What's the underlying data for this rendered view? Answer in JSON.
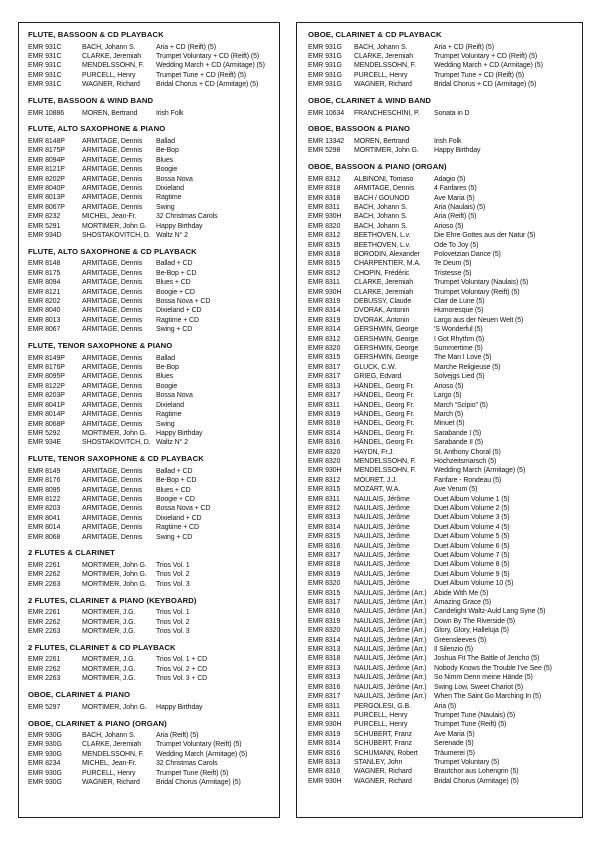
{
  "page": {
    "kind": "sheet-music-catalog-page"
  },
  "columns": [
    {
      "name": "left",
      "sections": [
        {
          "title": "FLUTE, BASSOON & CD PLAYBACK",
          "rows": [
            [
              "EMR 931C",
              "BACH, Johann S.",
              "Aria + CD (Reift) (5)"
            ],
            [
              "EMR 931C",
              "CLARKE, Jeremiah",
              "Trumpet Voluntary + CD (Reift) (5)"
            ],
            [
              "EMR 931C",
              "MENDELSSOHN, F.",
              "Wedding March + CD (Armitage) (5)"
            ],
            [
              "EMR 931C",
              "PURCELL, Henry",
              "Trumpet Tune + CD (Reift) (5)"
            ],
            [
              "EMR 931C",
              "WAGNER, Richard",
              "Bridal Chorus + CD (Armitage) (5)"
            ]
          ]
        },
        {
          "title": "FLUTE, BASSOON & WIND BAND",
          "rows": [
            [
              "EMR 10886",
              "MOREN, Bertrand",
              "Irish Folk"
            ]
          ]
        },
        {
          "title": "FLUTE, ALTO SAXOPHONE & PIANO",
          "rows": [
            [
              "EMR 8148P",
              "ARMITAGE, Dennis",
              "Ballad"
            ],
            [
              "EMR 8175P",
              "ARMITAGE, Dennis",
              "Be-Bop"
            ],
            [
              "EMR 8094P",
              "ARMITAGE, Dennis",
              "Blues"
            ],
            [
              "EMR 8121P",
              "ARMITAGE, Dennis",
              "Boogie"
            ],
            [
              "EMR 8202P",
              "ARMITAGE, Dennis",
              "Bossa Nova"
            ],
            [
              "EMR 8040P",
              "ARMITAGE, Dennis",
              "Dixieland"
            ],
            [
              "EMR 8013P",
              "ARMITAGE, Dennis",
              "Ragtime"
            ],
            [
              "EMR 8067P",
              "ARMITAGE, Dennis",
              "Swing"
            ],
            [
              "EMR 8232",
              "MICHEL, Jean-Fr.",
              "32 Christmas Carols"
            ],
            [
              "EMR 5291",
              "MORTIMER, John G.",
              "Happy Birthday"
            ],
            [
              "EMR 934D",
              "SHOSTAKOVITCH, D.",
              "Waltz N° 2"
            ]
          ]
        },
        {
          "title": "FLUTE, ALTO SAXOPHONE & CD PLAYBACK",
          "rows": [
            [
              "EMR 8148",
              "ARMITAGE, Dennis",
              "Ballad + CD"
            ],
            [
              "EMR 8175",
              "ARMITAGE, Dennis",
              "Be-Bop + CD"
            ],
            [
              "EMR 8094",
              "ARMITAGE, Dennis",
              "Blues + CD"
            ],
            [
              "EMR 8121",
              "ARMITAGE, Dennis",
              "Boogie + CD"
            ],
            [
              "EMR 8202",
              "ARMITAGE, Dennis",
              "Bossa Nova + CD"
            ],
            [
              "EMR 8040",
              "ARMITAGE, Dennis",
              "Dixieland + CD"
            ],
            [
              "EMR 8013",
              "ARMITAGE, Dennis",
              "Ragtime + CD"
            ],
            [
              "EMR 8067",
              "ARMITAGE, Dennis",
              "Swing + CD"
            ]
          ]
        },
        {
          "title": "FLUTE, TENOR SAXOPHONE & PIANO",
          "rows": [
            [
              "EMR 8149P",
              "ARMITAGE, Dennis",
              "Ballad"
            ],
            [
              "EMR 8176P",
              "ARMITAGE, Dennis",
              "Be-Bop"
            ],
            [
              "EMR 8095P",
              "ARMITAGE, Dennis",
              "Blues"
            ],
            [
              "EMR 8122P",
              "ARMITAGE, Dennis",
              "Boogie"
            ],
            [
              "EMR 8203P",
              "ARMITAGE, Dennis",
              "Bossa Nova"
            ],
            [
              "EMR 8041P",
              "ARMITAGE, Dennis",
              "Dixieland"
            ],
            [
              "EMR 8014P",
              "ARMITAGE, Dennis",
              "Ragtime"
            ],
            [
              "EMR 8068P",
              "ARMITAGE, Dennis",
              "Swing"
            ],
            [
              "EMR 5292",
              "MORTIMER, John G.",
              "Happy Birthday"
            ],
            [
              "EMR 934E",
              "SHOSTAKOVITCH, D.",
              "Waltz N° 2"
            ]
          ]
        },
        {
          "title": "FLUTE, TENOR SAXOPHONE & CD PLAYBACK",
          "rows": [
            [
              "EMR 8149",
              "ARMITAGE, Dennis",
              "Ballad + CD"
            ],
            [
              "EMR 8176",
              "ARMITAGE, Dennis",
              "Be-Bop + CD"
            ],
            [
              "EMR 8095",
              "ARMITAGE, Dennis",
              "Blues + CD"
            ],
            [
              "EMR 8122",
              "ARMITAGE, Dennis",
              "Boogie + CD"
            ],
            [
              "EMR 8203",
              "ARMITAGE, Dennis",
              "Bossa Nova + CD"
            ],
            [
              "EMR 8041",
              "ARMITAGE, Dennis",
              "Dixieland + CD"
            ],
            [
              "EMR 8014",
              "ARMITAGE, Dennis",
              "Ragtime + CD"
            ],
            [
              "EMR 8068",
              "ARMITAGE, Dennis",
              "Swing + CD"
            ]
          ]
        },
        {
          "title": "2 FLUTES & CLARINET",
          "rows": [
            [
              "EMR 2261",
              "MORTIMER, John G.",
              "Trios Vol. 1"
            ],
            [
              "EMR 2262",
              "MORTIMER, John G.",
              "Trios Vol. 2"
            ],
            [
              "EMR 2263",
              "MORTIMER, John G.",
              "Trios Vol. 3"
            ]
          ]
        },
        {
          "title": "2 FLUTES, CLARINET & PIANO (KEYBOARD)",
          "rows": [
            [
              "EMR 2261",
              "MORTIMER, J.G.",
              "Trios Vol. 1"
            ],
            [
              "EMR 2262",
              "MORTIMER, J.G.",
              "Trios Vol. 2"
            ],
            [
              "EMR 2263",
              "MORTIMER, J.G.",
              "Trios Vol. 3"
            ]
          ]
        },
        {
          "title": "2 FLUTES, CLARINET & CD PLAYBACK",
          "rows": [
            [
              "EMR 2261",
              "MORTIMER, J.G.",
              "Trios Vol. 1 + CD"
            ],
            [
              "EMR 2262",
              "MORTIMER, J.G.",
              "Trios Vol. 2 + CD"
            ],
            [
              "EMR 2263",
              "MORTIMER, J.G.",
              "Trios Vol. 3 + CD"
            ]
          ]
        },
        {
          "title": "OBOE, CLARINET & PIANO",
          "rows": [
            [
              "EMR 5297",
              "MORTIMER, John G.",
              "Happy Birthday"
            ]
          ]
        },
        {
          "title": "OBOE, CLARINET & PIANO (ORGAN)",
          "rows": [
            [
              "EMR 930G",
              "BACH, Johann S.",
              "Aria (Reift) (5)"
            ],
            [
              "EMR 930G",
              "CLARKE, Jeremiah",
              "Trumpet Voluntary (Reift) (5)"
            ],
            [
              "EMR 930G",
              "MENDELSSOHN, F.",
              "Wedding March (Armitage) (5)"
            ],
            [
              "EMR 8234",
              "MICHEL, Jean-Fr.",
              "32 Christmas Carols"
            ],
            [
              "EMR 930G",
              "PURCELL, Henry",
              "Trumpet Tune (Reift) (5)"
            ],
            [
              "EMR 930G",
              "WAGNER, Richard",
              "Bridal Chorus (Armitage) (5)"
            ]
          ]
        }
      ]
    },
    {
      "name": "right",
      "sections": [
        {
          "title": "OBOE, CLARINET & CD PLAYBACK",
          "rows": [
            [
              "EMR 931G",
              "BACH, Johann S.",
              "Aria + CD (Reift) (5)"
            ],
            [
              "EMR 931G",
              "CLARKE, Jeremiah",
              "Trumpet Voluntary + CD (Reift) (5)"
            ],
            [
              "EMR 931G",
              "MENDELSSOHN, F.",
              "Wedding March + CD (Armitage) (5)"
            ],
            [
              "EMR 931G",
              "PURCELL, Henry",
              "Trumpet Tune + CD (Reift) (5)"
            ],
            [
              "EMR 931G",
              "WAGNER, Richard",
              "Bridal Chorus + CD (Armitage) (5)"
            ]
          ]
        },
        {
          "title": "OBOE, CLARINET & WIND BAND",
          "rows": [
            [
              "EMR 10634",
              "FRANCHESCHINI, P.",
              "Sonata in D"
            ]
          ]
        },
        {
          "title": "OBOE, BASSOON & PIANO",
          "rows": [
            [
              "EMR 13342",
              "MOREN, Bertrand",
              "Irish Folk"
            ],
            [
              "EMR 5298",
              "MORTIMER, John G.",
              "Happy Birthday"
            ]
          ]
        },
        {
          "title": "OBOE, BASSOON & PIANO (ORGAN)",
          "rows": [
            [
              "EMR 8312",
              "ALBINONI, Tomaso",
              "Adagio (5)"
            ],
            [
              "EMR 8318",
              "ARMITAGE, Dennis",
              "4 Fanfares (5)"
            ],
            [
              "EMR 8318",
              "BACH / GOUNOD",
              "Ave Maria (5)"
            ],
            [
              "EMR 8311",
              "BACH, Johann S.",
              "Aria (Naulais) (5)"
            ],
            [
              "EMR 930H",
              "BACH, Johann S.",
              "Aria (Reift) (5)"
            ],
            [
              "EMR 8320",
              "BACH, Johann S.",
              "Arioso (5)"
            ],
            [
              "EMR 8312",
              "BEETHOVEN, L.v.",
              "Die Ehre Gottes aus der Natur (5)"
            ],
            [
              "EMR 8315",
              "BEETHOVEN, L.v.",
              "Ode To Joy (5)"
            ],
            [
              "EMR 8318",
              "BORODIN, Alexander",
              "Polovetzian Dance (5)"
            ],
            [
              "EMR 8315",
              "CHARPENTIER, M.A.",
              "Te Deum (5)"
            ],
            [
              "EMR 8312",
              "CHOPIN, Frédéric",
              "Tristesse (5)"
            ],
            [
              "EMR 8311",
              "CLARKE, Jeremiah",
              "Trumpet Voluntary (Naulais) (5)"
            ],
            [
              "EMR 930H",
              "CLARKE, Jeremiah",
              "Trumpet Voluntary (Reift) (5)"
            ],
            [
              "EMR 8319",
              "DEBUSSY, Claude",
              "Clair de Lune (5)"
            ],
            [
              "EMR 8314",
              "DVORAK, Antonin",
              "Humoresque (5)"
            ],
            [
              "EMR 8319",
              "DVORAK, Antonin",
              "Largo aus der Neuen Welt (5)"
            ],
            [
              "EMR 8314",
              "GERSHWIN, George",
              "'S Wonderful (5)"
            ],
            [
              "EMR 8312",
              "GERSHWIN, George",
              "I Got Rhythm (5)"
            ],
            [
              "EMR 8320",
              "GERSHWIN, George",
              "Summertime (5)"
            ],
            [
              "EMR 8315",
              "GERSHWIN, George",
              "The Man I Love (5)"
            ],
            [
              "EMR 8317",
              "GLUCK, C.W.",
              "Marche Religieuse (5)"
            ],
            [
              "EMR 8317",
              "GRIEG, Edvard",
              "Solvejgs Lied (5)"
            ],
            [
              "EMR 8313",
              "HÄNDEL, Georg Fr.",
              "Arioso (5)"
            ],
            [
              "EMR 8317",
              "HÄNDEL, Georg Fr.",
              "Largo (5)"
            ],
            [
              "EMR 8311",
              "HÄNDEL, Georg Fr.",
              "March “Scipio” (5)"
            ],
            [
              "EMR 8319",
              "HÄNDEL, Georg Fr.",
              "March (5)"
            ],
            [
              "EMR 8318",
              "HÄNDEL, Georg Fr.",
              "Minuet (5)"
            ],
            [
              "EMR 8314",
              "HÄNDEL, Georg Fr.",
              "Sarabande I (5)"
            ],
            [
              "EMR 8316",
              "HÄNDEL, Georg Fr.",
              "Sarabande II (5)"
            ],
            [
              "EMR 8320",
              "HAYDN, Fr.J.",
              "St. Anthony Choral (5)"
            ],
            [
              "EMR 8320",
              "MENDELSSOHN, F.",
              "Hochzeitsmarsch (5)"
            ],
            [
              "EMR 930H",
              "MENDELSSOHN, F.",
              "Wedding March (Armitage) (5)"
            ],
            [
              "EMR 8312",
              "MOURET, J.J.",
              "Fanfare - Rondeau (5)"
            ],
            [
              "EMR 8315",
              "MOZART, W.A.",
              "Ave Verum (5)"
            ],
            [
              "EMR 8311",
              "NAULAIS, Jérôme",
              "Duet Album Volume 1 (5)"
            ],
            [
              "EMR 8312",
              "NAULAIS, Jérôme",
              "Duet Album Volume 2 (5)"
            ],
            [
              "EMR 8313",
              "NAULAIS, Jérôme",
              "Duet Album Volume 3 (5)"
            ],
            [
              "EMR 8314",
              "NAULAIS, Jérôme",
              "Duet Album Volume 4 (5)"
            ],
            [
              "EMR 8315",
              "NAULAIS, Jérôme",
              "Duet Album Volume 5 (5)"
            ],
            [
              "EMR 8316",
              "NAULAIS, Jérôme",
              "Duet Album Volume 6 (5)"
            ],
            [
              "EMR 8317",
              "NAULAIS, Jérôme",
              "Duet Album Volume 7 (5)"
            ],
            [
              "EMR 8318",
              "NAULAIS, Jérôme",
              "Duet Album Volume 8 (5)"
            ],
            [
              "EMR 8319",
              "NAULAIS, Jérôme",
              "Duet Album Volume 9 (5)"
            ],
            [
              "EMR 8320",
              "NAULAIS, Jérôme",
              "Duet Album Volume 10 (5)"
            ],
            [
              "EMR 8315",
              "NAULAIS, Jérôme (Arr.)",
              "Abide With Me (5)"
            ],
            [
              "EMR 8317",
              "NAULAIS, Jérôme (Arr.)",
              "Amazing Grace (5)"
            ],
            [
              "EMR 8316",
              "NAULAIS, Jérôme (Arr.)",
              "Candelight Waltz-Auld Lang Syne (5)"
            ],
            [
              "EMR 8319",
              "NAULAIS, Jérôme (Arr.)",
              "Down By The Riverside (5)"
            ],
            [
              "EMR 8320",
              "NAULAIS, Jérôme (Arr.)",
              "Glory, Glory, Halleluja (5)"
            ],
            [
              "EMR 8314",
              "NAULAIS, Jérôme (Arr.)",
              "Greensleeves (5)"
            ],
            [
              "EMR 8313",
              "NAULAIS, Jérôme (Arr.)",
              "Il Silenzio (5)"
            ],
            [
              "EMR 8318",
              "NAULAIS, Jérôme (Arr.)",
              "Joshua Fit The Battle of Jericho (5)"
            ],
            [
              "EMR 8313",
              "NAULAIS, Jérôme (Arr.)",
              "Nobody Knows the Trouble I've See (5)"
            ],
            [
              "EMR 8313",
              "NAULAIS, Jérôme (Arr.)",
              "So Nimm Denn meine Hände (5)"
            ],
            [
              "EMR 8316",
              "NAULAIS, Jérôme (Arr.)",
              "Swing Low, Sweet Chariot (5)"
            ],
            [
              "EMR 8317",
              "NAULAIS, Jérôme (Arr.)",
              "When The Saint Go Marching In (5)"
            ],
            [
              "EMR 8311",
              "PERGOLESI, G.B.",
              "Aria (5)"
            ],
            [
              "EMR 8311",
              "PURCELL, Henry",
              "Trumpet Tune (Naulais) (5)"
            ],
            [
              "EMR 930H",
              "PURCELL, Henry",
              "Trumpet Tune (Reift) (5)"
            ],
            [
              "EMR 8319",
              "SCHUBERT, Franz",
              "Ave Maria (5)"
            ],
            [
              "EMR 8314",
              "SCHUBERT, Franz",
              "Serenade (5)"
            ],
            [
              "EMR 8316",
              "SCHUMANN, Robert",
              "Träumerei (5)"
            ],
            [
              "EMR 8313",
              "STANLEY, John",
              "Trumpet Voluntary (5)"
            ],
            [
              "EMR 8316",
              "WAGNER, Richard",
              "Brautchor aus Lohengrin (5)"
            ],
            [
              "EMR 930H",
              "WAGNER, Richard",
              "Bridal Chorus (Armitage) (5)"
            ]
          ]
        }
      ]
    }
  ]
}
